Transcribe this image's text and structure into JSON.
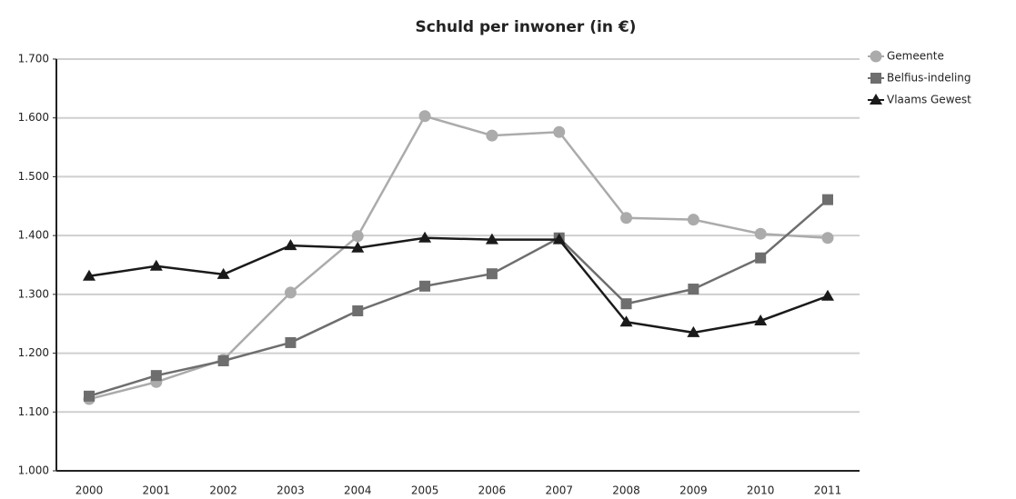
{
  "chart_data": {
    "type": "line",
    "title": "Schuld per inwoner (in €)",
    "categories": [
      "2000",
      "2001",
      "2002",
      "2003",
      "2004",
      "2005",
      "2006",
      "2007",
      "2008",
      "2009",
      "2010",
      "2011"
    ],
    "series": [
      {
        "name": "Gemeente",
        "color": "#ababab",
        "marker": "circle",
        "values": [
          1122,
          1151,
          1189,
          1303,
          1399,
          1603,
          1570,
          1576,
          1430,
          1427,
          1403,
          1396
        ]
      },
      {
        "name": "Belfius-indeling",
        "color": "#6e6e6e",
        "marker": "square",
        "values": [
          1127,
          1162,
          1187,
          1218,
          1272,
          1314,
          1335,
          1396,
          1284,
          1309,
          1362,
          1461
        ]
      },
      {
        "name": "Vlaams Gewest",
        "color": "#1a1a1a",
        "marker": "triangle",
        "values": [
          1331,
          1348,
          1334,
          1383,
          1379,
          1396,
          1393,
          1393,
          1253,
          1235,
          1255,
          1297
        ]
      }
    ],
    "ylim": [
      1000,
      1700
    ],
    "yticks": [
      {
        "value": 1000,
        "label": "1.000"
      },
      {
        "value": 1100,
        "label": "1.100"
      },
      {
        "value": 1200,
        "label": "1.200"
      },
      {
        "value": 1300,
        "label": "1.300"
      },
      {
        "value": 1400,
        "label": "1.400"
      },
      {
        "value": 1500,
        "label": "1.500"
      },
      {
        "value": 1600,
        "label": "1.600"
      },
      {
        "value": 1700,
        "label": "1.700"
      }
    ],
    "grid": true,
    "legend": "right"
  }
}
